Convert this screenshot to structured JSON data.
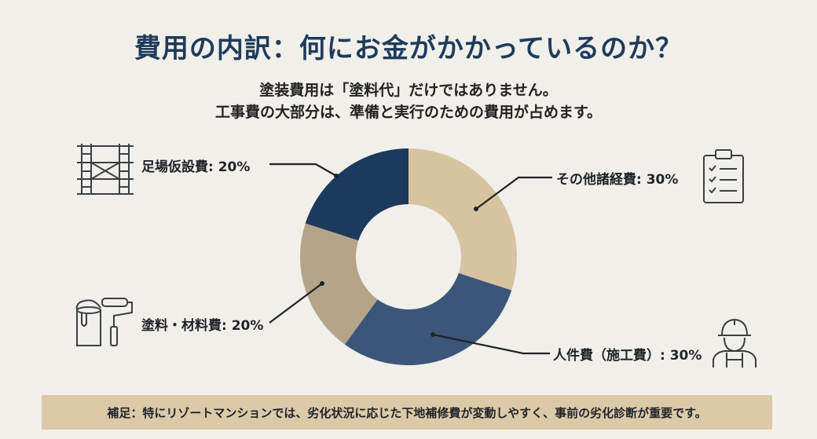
{
  "header": {
    "title": "費用の内訳：何にお金がかかっているのか？",
    "subtitle_line1": "塗装費用は「塗料代」だけではありません。",
    "subtitle_line2": "工事費の大部分は、準備と実行のための費用が占めます。"
  },
  "chart_data": {
    "type": "pie",
    "categories": [
      "その他諸経費",
      "人件費（施工費）",
      "塗料・材料費",
      "足場仮設費"
    ],
    "values": [
      30,
      30,
      20,
      20
    ],
    "labels": [
      "その他諸経費: 30%",
      "人件費（施工費）: 30%",
      "塗料・材料費: 20%",
      "足場仮設費: 20%"
    ],
    "colors": [
      "#d8c3a0",
      "#3b5679",
      "#b5a588",
      "#1c3a5c"
    ],
    "donut": true
  },
  "icons": {
    "scaffold": "scaffold-icon",
    "clipboard": "clipboard-checklist-icon",
    "paint": "paint-bucket-roller-icon",
    "worker": "construction-worker-icon"
  },
  "footer": {
    "note": "補足：特にリゾートマンションでは、劣化状況に応じた下地補修費が変動しやすく、事前の劣化診断が重要です。"
  }
}
